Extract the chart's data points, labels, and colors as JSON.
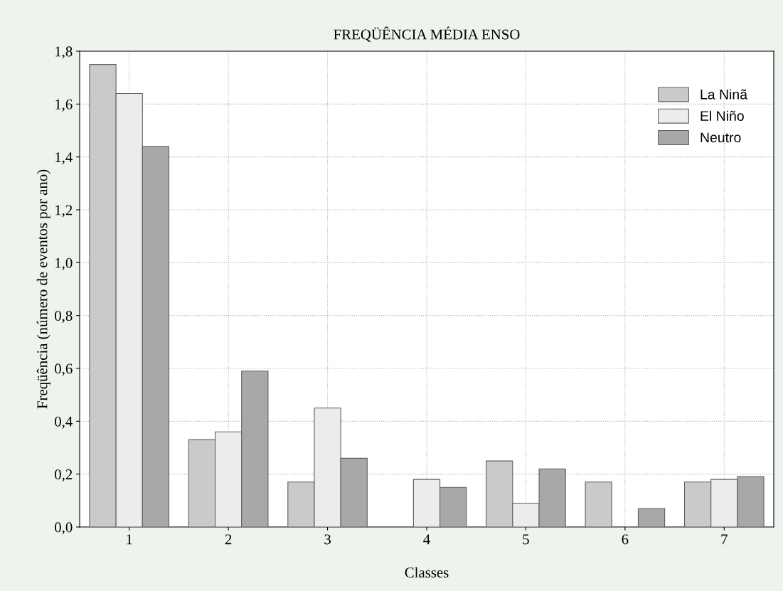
{
  "chart_data": {
    "type": "bar",
    "title": "FREQÜÊNCIA MÉDIA ENSO",
    "xlabel": "Classes",
    "ylabel": "Freqüência (número de eventos por ano)",
    "categories": [
      "1",
      "2",
      "3",
      "4",
      "5",
      "6",
      "7"
    ],
    "series": [
      {
        "name": "La Ninã",
        "color": "#c9cbc9",
        "values": [
          1.75,
          0.33,
          0.17,
          0,
          0.25,
          0.17,
          0.17
        ]
      },
      {
        "name": "El Niño",
        "color": "#ececec",
        "values": [
          1.64,
          0.36,
          0.45,
          0.18,
          0.09,
          0,
          0.18
        ]
      },
      {
        "name": "Neutro",
        "color": "#a8a8a8",
        "values": [
          1.44,
          0.59,
          0.26,
          0.15,
          0.22,
          0.07,
          0.19
        ]
      }
    ],
    "ylim": [
      0,
      1.8
    ],
    "yticks": [
      {
        "value": 0,
        "label": "0,0"
      },
      {
        "value": 0.2,
        "label": "0,2"
      },
      {
        "value": 0.4,
        "label": "0,4"
      },
      {
        "value": 0.6,
        "label": "0,6"
      },
      {
        "value": 0.8,
        "label": "0,8"
      },
      {
        "value": 1.0,
        "label": "1,0"
      },
      {
        "value": 1.2,
        "label": "1,2"
      },
      {
        "value": 1.4,
        "label": "1,4"
      },
      {
        "value": 1.6,
        "label": "1,6"
      },
      {
        "value": 1.8,
        "label": "1,8"
      }
    ],
    "grid": true,
    "legend": "top right"
  }
}
